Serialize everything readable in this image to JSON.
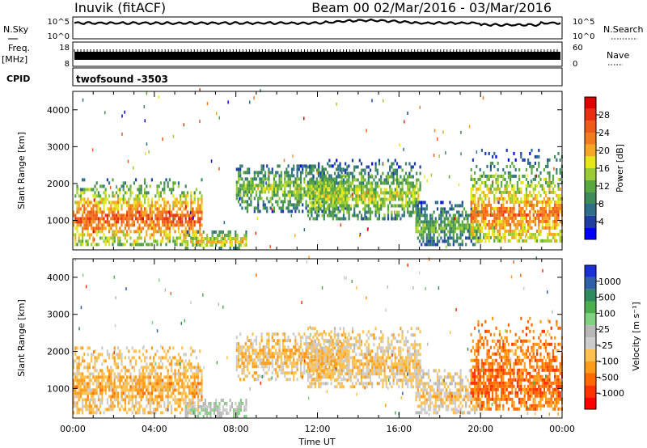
{
  "header": {
    "station": "Inuvik (fitACF)",
    "beam_title": "Beam 00  02/Mar/2016 - 03/Mar/2016"
  },
  "status_panels": {
    "nsky_label": "N.Sky",
    "freq_label": "Freq.",
    "freq_unit": "[MHz]",
    "cpid_label": "CPID",
    "nsearch_label": "N.Search",
    "nave_label": "Nave",
    "left_tick_top": "10^5",
    "left_tick_bottom": "10^0",
    "right_tick_top": "10^5",
    "right_tick_bottom": "10^0",
    "freq_tick_top": "18",
    "freq_tick_bottom": "8",
    "nave_tick_top": "60",
    "nave_tick_bottom": "0",
    "cpid_value": "twofsound -3503",
    "nsky_level": 0.72,
    "freq_level": 0.5
  },
  "colors": {
    "power": [
      "#0000ff",
      "#1f3fa0",
      "#2f6e8a",
      "#3e8a5a",
      "#58a83e",
      "#99cc33",
      "#e6e619",
      "#f5a623",
      "#f27c1d",
      "#ef5a18",
      "#ea2e12",
      "#e00000"
    ],
    "velocity": [
      "#ff0000",
      "#ff3300",
      "#ff6a00",
      "#ff9c1a",
      "#ffc14d",
      "#cccccc",
      "#b8b8b8",
      "#7fd07f",
      "#4cae4c",
      "#2f8a5e",
      "#2e5fa8",
      "#1a2fd6"
    ]
  },
  "chart_data": [
    {
      "type": "heatmap",
      "name": "power",
      "xlabel": "",
      "ylabel": "Slant Range [km]",
      "x_ticks": [
        "00:00",
        "04:00",
        "08:00",
        "12:00",
        "16:00",
        "20:00",
        "00:00"
      ],
      "xlim_hours": [
        0,
        24
      ],
      "y_ticks": [
        1000,
        2000,
        3000,
        4000
      ],
      "ylim": [
        200,
        4500
      ],
      "colorbar_label": "Power [dB]",
      "colorbar_ticks": [
        "4",
        "8",
        "12",
        "16",
        "20",
        "24",
        "28"
      ],
      "clim": [
        0,
        30
      ],
      "echo_regions": [
        {
          "t0": 0.0,
          "t1": 6.3,
          "r0": 300,
          "r1": 2100,
          "core": 1000,
          "level": 24
        },
        {
          "t0": 5.5,
          "t1": 8.5,
          "r0": 200,
          "r1": 700,
          "core": 400,
          "level": 18
        },
        {
          "t0": 8.0,
          "t1": 13.5,
          "r0": 1200,
          "r1": 2500,
          "core": 1800,
          "level": 14
        },
        {
          "t0": 11.5,
          "t1": 17.0,
          "r0": 1000,
          "r1": 2600,
          "core": 1600,
          "level": 15
        },
        {
          "t0": 16.8,
          "t1": 20.0,
          "r0": 300,
          "r1": 1500,
          "core": 800,
          "level": 12
        },
        {
          "t0": 19.5,
          "t1": 24.0,
          "r0": 400,
          "r1": 2900,
          "core": 1100,
          "level": 22
        }
      ]
    },
    {
      "type": "heatmap",
      "name": "velocity",
      "xlabel": "Time UT",
      "ylabel": "Slant Range [km]",
      "x_ticks": [
        "00:00",
        "04:00",
        "08:00",
        "12:00",
        "16:00",
        "20:00",
        "00:00"
      ],
      "xlim_hours": [
        0,
        24
      ],
      "y_ticks": [
        1000,
        2000,
        3000,
        4000
      ],
      "ylim": [
        200,
        4500
      ],
      "colorbar_label": "Velocity [m s⁻¹]",
      "colorbar_ticks": [
        "-1000",
        "-500",
        "-100",
        "-25",
        "25",
        "100",
        "500",
        "1000"
      ],
      "clim": [
        -1200,
        1200
      ],
      "echo_regions": [
        {
          "t0": 0.0,
          "t1": 6.3,
          "r0": 300,
          "r1": 2100,
          "core": 1000,
          "level": -300
        },
        {
          "t0": 5.5,
          "t1": 8.5,
          "r0": 200,
          "r1": 700,
          "core": 400,
          "level": 150
        },
        {
          "t0": 8.0,
          "t1": 13.5,
          "r0": 1200,
          "r1": 2500,
          "core": 1800,
          "level": -250
        },
        {
          "t0": 11.5,
          "t1": 17.0,
          "r0": 1000,
          "r1": 2600,
          "core": 1600,
          "level": -200
        },
        {
          "t0": 16.8,
          "t1": 20.0,
          "r0": 300,
          "r1": 1500,
          "core": 800,
          "level": -150
        },
        {
          "t0": 19.5,
          "t1": 24.0,
          "r0": 400,
          "r1": 2900,
          "core": 1100,
          "level": -600
        }
      ]
    }
  ]
}
